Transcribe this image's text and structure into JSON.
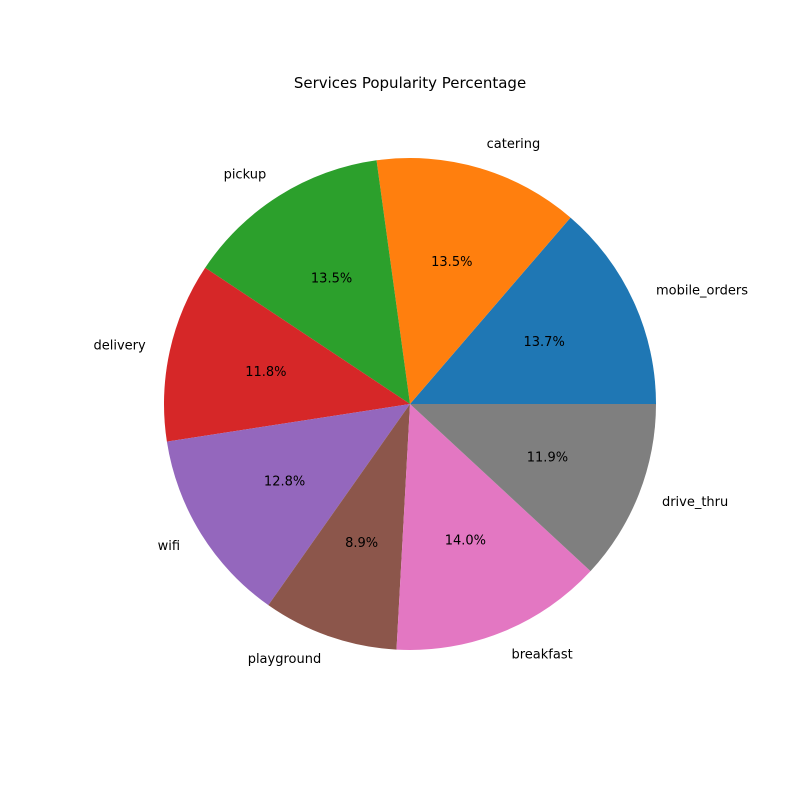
{
  "chart_data": {
    "type": "pie",
    "title": "Services Popularity Percentage",
    "start_angle_deg": 0,
    "direction": "counterclockwise",
    "slices": [
      {
        "label": "mobile_orders",
        "percent": 13.7,
        "percent_label": "13.7%",
        "color": "#1f77b4"
      },
      {
        "label": "catering",
        "percent": 13.5,
        "percent_label": "13.5%",
        "color": "#ff7f0e"
      },
      {
        "label": "pickup",
        "percent": 13.5,
        "percent_label": "13.5%",
        "color": "#2ca02c"
      },
      {
        "label": "delivery",
        "percent": 11.8,
        "percent_label": "11.8%",
        "color": "#d62728"
      },
      {
        "label": "wifi",
        "percent": 12.8,
        "percent_label": "12.8%",
        "color": "#9467bd"
      },
      {
        "label": "playground",
        "percent": 8.9,
        "percent_label": "8.9%",
        "color": "#8c564b"
      },
      {
        "label": "breakfast",
        "percent": 14.0,
        "percent_label": "14.0%",
        "color": "#e377c2"
      },
      {
        "label": "drive_thru",
        "percent": 11.9,
        "percent_label": "11.9%",
        "color": "#7f7f7f"
      }
    ]
  }
}
